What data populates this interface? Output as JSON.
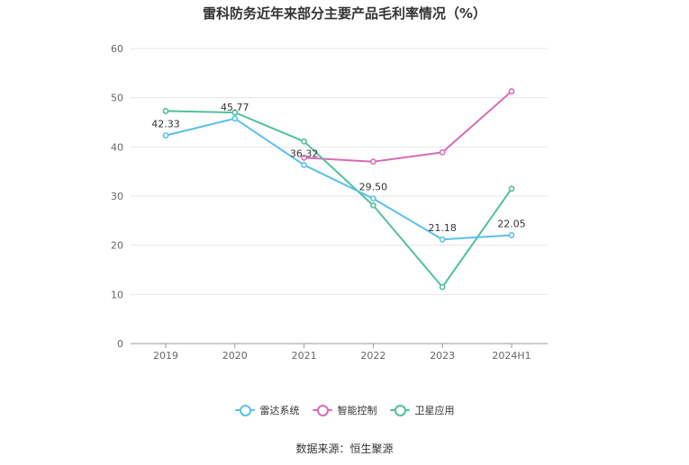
{
  "chart_data": {
    "type": "line",
    "title": "雷科防务近年来部分主要产品毛利率情况（%）",
    "xlabel": "",
    "ylabel": "",
    "categories": [
      "2019",
      "2020",
      "2021",
      "2022",
      "2023",
      "2024H1"
    ],
    "ylim": [
      0,
      60
    ],
    "yticks": [
      0,
      10,
      20,
      30,
      40,
      50,
      60
    ],
    "grid": true,
    "legend_position": "bottom",
    "series": [
      {
        "name": "雷达系统",
        "color": "#5bc0eb",
        "values": [
          42.33,
          45.77,
          36.32,
          29.5,
          21.18,
          22.05
        ],
        "labels": [
          "42.33",
          "45.77",
          "36.32",
          "29.50",
          "21.18",
          "22.05"
        ]
      },
      {
        "name": "智能控制",
        "color": "#d96bb5",
        "values": [
          null,
          null,
          37.8,
          37.0,
          38.9,
          51.3
        ],
        "labels": [
          null,
          null,
          null,
          null,
          null,
          null
        ]
      },
      {
        "name": "卫星应用",
        "color": "#52bfa0",
        "values": [
          47.3,
          47.0,
          41.1,
          28.1,
          11.5,
          31.5
        ],
        "labels": [
          null,
          null,
          null,
          null,
          null,
          null
        ]
      }
    ]
  },
  "source": "数据来源：恒生聚源"
}
